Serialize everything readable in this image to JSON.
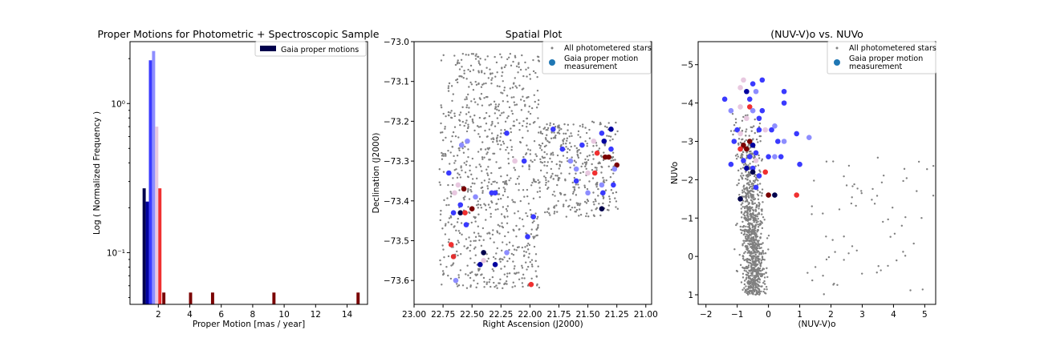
{
  "chart_data": [
    {
      "type": "bar",
      "title": "Proper Motions for Photometric + Spectroscopic Sample",
      "xlabel": "Proper Motion [mas / year]",
      "ylabel": "Log ( Normalized Frequency )",
      "xlim": [
        0.2,
        15.3
      ],
      "ylim": [
        0.045,
        2.6
      ],
      "y_scale": "log",
      "grid": false,
      "legend_placement": "top-right",
      "legend": [
        "Gaia proper motions"
      ],
      "xticks": [
        "2",
        "4",
        "6",
        "8",
        "10",
        "12",
        "14"
      ],
      "yticks": [
        "10⁻¹",
        "10⁰"
      ],
      "bar_width": 0.2,
      "bars": [
        {
          "x": 1.1,
          "value": 0.27,
          "color": "#00004c"
        },
        {
          "x": 1.3,
          "value": 0.22,
          "color": "#00009f"
        },
        {
          "x": 1.5,
          "value": 1.95,
          "color": "#3a3aff"
        },
        {
          "x": 1.7,
          "value": 2.25,
          "color": "#8d8dff"
        },
        {
          "x": 1.9,
          "value": 0.7,
          "color": "#e8c8e0"
        },
        {
          "x": 2.1,
          "value": 0.27,
          "color": "#f03030"
        },
        {
          "x": 2.35,
          "value": 0.054,
          "color": "#7a0000"
        },
        {
          "x": 4.05,
          "value": 0.054,
          "color": "#7a0000"
        },
        {
          "x": 5.45,
          "value": 0.054,
          "color": "#7a0000"
        },
        {
          "x": 9.35,
          "value": 0.054,
          "color": "#7a0000"
        },
        {
          "x": 14.7,
          "value": 0.054,
          "color": "#7a0000"
        }
      ]
    },
    {
      "type": "scatter",
      "title": "Spatial Plot",
      "xlabel": "Right Ascension (J2000)",
      "ylabel": "Declination (J2000)",
      "xlim": [
        23.0,
        20.95
      ],
      "ylim": [
        -73.66,
        -73.0
      ],
      "grid": false,
      "legend_placement": "top-right",
      "legend": [
        "All photometered stars",
        "Gaia proper motion measurement"
      ],
      "xticks": [
        "23.00",
        "22.75",
        "22.50",
        "22.25",
        "22.00",
        "21.75",
        "21.50",
        "21.25",
        "21.00"
      ],
      "yticks": [
        "−73.0",
        "−73.1",
        "−73.2",
        "−73.3",
        "−73.4",
        "−73.5",
        "−73.6"
      ],
      "gaia_points": [
        [
          22.57,
          -73.37,
          "#7a0000"
        ],
        [
          22.5,
          -73.42,
          "#7a0000"
        ],
        [
          22.6,
          -73.43,
          "#00004c"
        ],
        [
          22.43,
          -73.56,
          "#00009f"
        ],
        [
          22.4,
          -73.53,
          "#00004c"
        ],
        [
          22.3,
          -73.56,
          "#00009f"
        ],
        [
          22.33,
          -73.38,
          "#3a3aff"
        ],
        [
          22.3,
          -73.38,
          "#3a3aff"
        ],
        [
          22.2,
          -73.23,
          "#3a3aff"
        ],
        [
          22.05,
          -73.3,
          "#3a3aff"
        ],
        [
          21.97,
          -73.44,
          "#3a3aff"
        ],
        [
          22.02,
          -73.49,
          "#3a3aff"
        ],
        [
          21.99,
          -73.61,
          "#f03030"
        ],
        [
          22.68,
          -73.51,
          "#f03030"
        ],
        [
          22.66,
          -73.54,
          "#e03030"
        ],
        [
          22.7,
          -73.33,
          "#3a3aff"
        ],
        [
          22.65,
          -73.38,
          "#e8c8e0"
        ],
        [
          22.6,
          -73.41,
          "#3a3aff"
        ],
        [
          22.64,
          -73.6,
          "#8d8dff"
        ],
        [
          22.54,
          -73.25,
          "#8d8dff"
        ],
        [
          22.4,
          -73.55,
          "#e8c8e0"
        ],
        [
          22.2,
          -73.53,
          "#8d8dff"
        ],
        [
          21.55,
          -73.26,
          "#3a3aff"
        ],
        [
          21.42,
          -73.28,
          "#f03030"
        ],
        [
          21.35,
          -73.29,
          "#7a0000"
        ],
        [
          21.32,
          -73.29,
          "#7a0000"
        ],
        [
          21.36,
          -73.25,
          "#00009f"
        ],
        [
          21.3,
          -73.22,
          "#00009f"
        ],
        [
          21.38,
          -73.23,
          "#3a3aff"
        ],
        [
          21.25,
          -73.31,
          "#7a0000"
        ],
        [
          21.28,
          -73.36,
          "#3a3aff"
        ],
        [
          21.37,
          -73.38,
          "#3a3aff"
        ],
        [
          21.38,
          -73.42,
          "#00004c"
        ],
        [
          21.38,
          -73.36,
          "#8d8dff"
        ],
        [
          21.5,
          -73.38,
          "#8d8dff"
        ],
        [
          21.6,
          -73.32,
          "#8d8dff"
        ],
        [
          21.44,
          -73.33,
          "#f03030"
        ],
        [
          21.5,
          -73.33,
          "#e8c8e0"
        ],
        [
          21.72,
          -73.27,
          "#3a3aff"
        ],
        [
          21.8,
          -73.22,
          "#3a3aff"
        ],
        [
          21.65,
          -73.3,
          "#8d8dff"
        ],
        [
          22.13,
          -73.3,
          "#e8c8e0"
        ],
        [
          22.62,
          -73.36,
          "#e8c8e0"
        ],
        [
          22.56,
          -73.43,
          "#f03030"
        ],
        [
          22.47,
          -73.39,
          "#8d8dff"
        ],
        [
          22.55,
          -73.46,
          "#3a3aff"
        ],
        [
          21.45,
          -73.25,
          "#e8c8e0"
        ],
        [
          21.3,
          -73.27,
          "#3a3aff"
        ],
        [
          22.66,
          -73.43,
          "#3a3aff"
        ],
        [
          21.27,
          -73.32,
          "#8d8dff"
        ],
        [
          21.6,
          -73.35,
          "#3a3aff"
        ],
        [
          22.59,
          -73.26,
          "#8d8dff"
        ]
      ]
    },
    {
      "type": "scatter",
      "title": "(NUV-V)o vs. NUVo",
      "xlabel": "(NUV-V)o",
      "ylabel": "NUVo",
      "xlim": [
        -2.25,
        5.35
      ],
      "ylim": [
        1.25,
        -5.6
      ],
      "grid": false,
      "legend_placement": "top-right",
      "legend": [
        "All photometered stars",
        "Gaia proper motion measurement"
      ],
      "xticks": [
        "−2",
        "−1",
        "0",
        "1",
        "2",
        "3",
        "4",
        "5"
      ],
      "yticks": [
        "−5",
        "−4",
        "−3",
        "−2",
        "−1",
        "0",
        "1"
      ],
      "gaia_points": [
        [
          -0.2,
          -4.6,
          "#3a3aff"
        ],
        [
          -0.8,
          -4.6,
          "#e8c8e0"
        ],
        [
          -0.5,
          -4.5,
          "#3a3aff"
        ],
        [
          -0.9,
          -4.4,
          "#e8c8e0"
        ],
        [
          -1.4,
          -4.1,
          "#3a3aff"
        ],
        [
          -0.7,
          -4.3,
          "#00009f"
        ],
        [
          -0.6,
          -4.1,
          "#3a3aff"
        ],
        [
          -0.4,
          -4.3,
          "#8d8dff"
        ],
        [
          0.5,
          -4.3,
          "#3a3aff"
        ],
        [
          0.5,
          -4.0,
          "#3a3aff"
        ],
        [
          -0.9,
          -3.9,
          "#e8c8e0"
        ],
        [
          -0.6,
          -3.9,
          "#f03030"
        ],
        [
          -0.5,
          -3.8,
          "#8d8dff"
        ],
        [
          -0.3,
          -3.6,
          "#3a3aff"
        ],
        [
          -0.7,
          -3.6,
          "#e8c8e0"
        ],
        [
          -1.0,
          -3.3,
          "#3a3aff"
        ],
        [
          -0.9,
          -3.2,
          "#e8c8e0"
        ],
        [
          -0.8,
          -2.9,
          "#7a0000"
        ],
        [
          -0.7,
          -2.8,
          "#7a0000"
        ],
        [
          -0.6,
          -3.0,
          "#7a0000"
        ],
        [
          -0.9,
          -2.8,
          "#f03030"
        ],
        [
          -1.1,
          -3.0,
          "#3a3aff"
        ],
        [
          -0.3,
          -3.3,
          "#3a3aff"
        ],
        [
          -0.1,
          -3.3,
          "#e8c8e0"
        ],
        [
          0.1,
          -3.3,
          "#3a3aff"
        ],
        [
          0.2,
          -3.4,
          "#8d8dff"
        ],
        [
          0.3,
          -3.0,
          "#3a3aff"
        ],
        [
          0.5,
          -3.0,
          "#8d8dff"
        ],
        [
          0.9,
          -3.2,
          "#3a3aff"
        ],
        [
          1.3,
          -3.1,
          "#8d8dff"
        ],
        [
          -0.5,
          -2.9,
          "#00009f"
        ],
        [
          -0.4,
          -2.7,
          "#3a3aff"
        ],
        [
          -0.6,
          -2.6,
          "#3a3aff"
        ],
        [
          -0.4,
          -2.5,
          "#e8c8e0"
        ],
        [
          -0.5,
          -2.3,
          "#3a3aff"
        ],
        [
          -0.7,
          -2.3,
          "#00009f"
        ],
        [
          -0.8,
          -2.5,
          "#3a3aff"
        ],
        [
          -1.2,
          -2.4,
          "#3a3aff"
        ],
        [
          0.0,
          -2.6,
          "#3a3aff"
        ],
        [
          0.2,
          -2.6,
          "#8d8dff"
        ],
        [
          0.4,
          -2.6,
          "#3a3aff"
        ],
        [
          1.0,
          -2.4,
          "#3a3aff"
        ],
        [
          -0.5,
          -2.2,
          "#00004c"
        ],
        [
          -0.3,
          -2.1,
          "#3a3aff"
        ],
        [
          -0.1,
          -2.2,
          "#f03030"
        ],
        [
          0.0,
          -1.6,
          "#7a0000"
        ],
        [
          0.2,
          -1.6,
          "#00004c"
        ],
        [
          0.9,
          -1.6,
          "#f03030"
        ],
        [
          -0.9,
          -1.5,
          "#00004c"
        ],
        [
          -0.4,
          -1.8,
          "#3a3aff"
        ],
        [
          -1.2,
          -3.8,
          "#8d8dff"
        ],
        [
          -0.2,
          -3.8,
          "#3a3aff"
        ]
      ]
    }
  ]
}
